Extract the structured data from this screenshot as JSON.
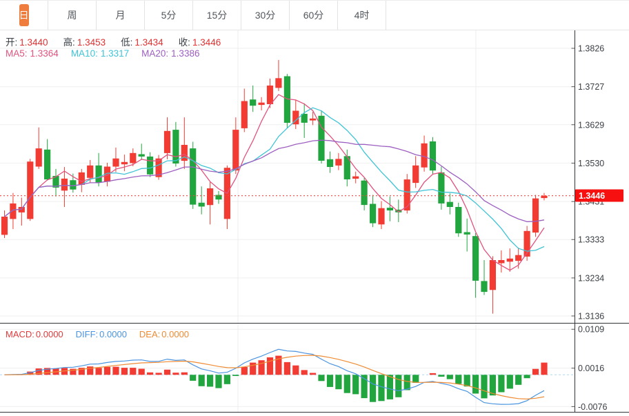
{
  "toolbar": {
    "tabs": [
      {
        "label": "日",
        "active": true
      },
      {
        "label": "周",
        "active": false
      },
      {
        "label": "月",
        "active": false
      },
      {
        "label": "5分",
        "active": false
      },
      {
        "label": "15分",
        "active": false
      },
      {
        "label": "30分",
        "active": false
      },
      {
        "label": "60分",
        "active": false
      },
      {
        "label": "4时",
        "active": false
      }
    ]
  },
  "legend": {
    "ohlc": [
      {
        "label": "开:",
        "value": "1.3440"
      },
      {
        "label": "高:",
        "value": "1.3453"
      },
      {
        "label": "低:",
        "value": "1.3434"
      },
      {
        "label": "收:",
        "value": "1.3446"
      }
    ],
    "ohlc_value_color": "#e03131",
    "ma": [
      {
        "label": "MA5:",
        "value": "1.3364",
        "color": "#e2527e"
      },
      {
        "label": "MA10:",
        "value": "1.3317",
        "color": "#3fc3d6"
      },
      {
        "label": "MA20:",
        "value": "1.3386",
        "color": "#9c5fc0"
      }
    ]
  },
  "macd_legend": [
    {
      "label": "MACD:",
      "value": "0.0000",
      "color": "#e03a3a"
    },
    {
      "label": "DIFF:",
      "value": "0.0000",
      "color": "#4a94e0"
    },
    {
      "label": "DEA:",
      "value": "0.0000",
      "color": "#ef8b33"
    }
  ],
  "price_tag": {
    "value": "1.3446"
  },
  "colors": {
    "accent": "#ef7d3d",
    "up": "#f23b32",
    "down": "#21a53e",
    "ma5": "#e2527e",
    "ma10": "#3fc3d6",
    "ma20": "#9c5fc0",
    "diff": "#4a94e0",
    "dea": "#ef8b33",
    "tag": "#f71010",
    "price_line": "#f5433f",
    "macd_zero_line": "#aed9f0",
    "grid": "#efefef",
    "axis": "#2f3237"
  },
  "chart_data": {
    "type": "candlestick+macd",
    "y_axis_ticks": [
      "1.3826",
      "1.3727",
      "1.3629",
      "1.3530",
      "1.3431",
      "1.3333",
      "1.3234",
      "1.3136"
    ],
    "macd_axis_ticks": [
      "0.0109",
      "0.0016",
      "-0.0076"
    ],
    "current_price": 1.3446,
    "ylim": [
      1.312,
      1.3876
    ],
    "macd_ylim": [
      -0.0088,
      0.0122
    ],
    "ma_periods": [
      5,
      10,
      20
    ],
    "macd_params": [
      12,
      26,
      9
    ],
    "grid": true,
    "candles": [
      [
        1.3345,
        1.3408,
        1.3337,
        1.3392
      ],
      [
        1.3386,
        1.3453,
        1.336,
        1.3426
      ],
      [
        1.3403,
        1.3441,
        1.3369,
        1.3417
      ],
      [
        1.3386,
        1.3541,
        1.3381,
        1.3534
      ],
      [
        1.3521,
        1.3622,
        1.3515,
        1.3568
      ],
      [
        1.3565,
        1.3592,
        1.3485,
        1.3488
      ],
      [
        1.3497,
        1.3515,
        1.3444,
        1.3467
      ],
      [
        1.3459,
        1.352,
        1.3417,
        1.349
      ],
      [
        1.3486,
        1.3503,
        1.3454,
        1.3462
      ],
      [
        1.3474,
        1.3515,
        1.3455,
        1.3506
      ],
      [
        1.3492,
        1.3538,
        1.348,
        1.3524
      ],
      [
        1.3524,
        1.3556,
        1.347,
        1.348
      ],
      [
        1.3482,
        1.3531,
        1.347,
        1.3521
      ],
      [
        1.3521,
        1.357,
        1.3507,
        1.3542
      ],
      [
        1.3527,
        1.3552,
        1.3509,
        1.3533
      ],
      [
        1.353,
        1.3568,
        1.3522,
        1.3556
      ],
      [
        1.3553,
        1.358,
        1.3538,
        1.3547
      ],
      [
        1.3547,
        1.3558,
        1.3494,
        1.3501
      ],
      [
        1.3494,
        1.3551,
        1.3487,
        1.3542
      ],
      [
        1.3556,
        1.3648,
        1.354,
        1.3613
      ],
      [
        1.3616,
        1.3636,
        1.3521,
        1.3529
      ],
      [
        1.3536,
        1.3648,
        1.3515,
        1.3577
      ],
      [
        1.3568,
        1.3585,
        1.3412,
        1.3423
      ],
      [
        1.3428,
        1.347,
        1.3398,
        1.3418
      ],
      [
        1.3422,
        1.3481,
        1.3372,
        1.3465
      ],
      [
        1.3448,
        1.3458,
        1.3425,
        1.3436
      ],
      [
        1.3386,
        1.3524,
        1.336,
        1.3518
      ],
      [
        1.3511,
        1.3648,
        1.3502,
        1.3616
      ],
      [
        1.362,
        1.3722,
        1.361,
        1.369
      ],
      [
        1.3694,
        1.373,
        1.3662,
        1.3678
      ],
      [
        1.368,
        1.37,
        1.3666,
        1.3686
      ],
      [
        1.3682,
        1.3748,
        1.3672,
        1.373
      ],
      [
        1.3724,
        1.3796,
        1.3716,
        1.3749
      ],
      [
        1.3754,
        1.376,
        1.362,
        1.3634
      ],
      [
        1.363,
        1.3693,
        1.3618,
        1.3665
      ],
      [
        1.3657,
        1.3684,
        1.3595,
        1.3634
      ],
      [
        1.364,
        1.3662,
        1.3628,
        1.3645
      ],
      [
        1.3652,
        1.3666,
        1.3529,
        1.3536
      ],
      [
        1.354,
        1.356,
        1.3505,
        1.352
      ],
      [
        1.3524,
        1.3556,
        1.3512,
        1.3541
      ],
      [
        1.3548,
        1.3565,
        1.347,
        1.3488
      ],
      [
        1.349,
        1.3508,
        1.3478,
        1.3496
      ],
      [
        1.3485,
        1.3492,
        1.3408,
        1.3422
      ],
      [
        1.3425,
        1.3448,
        1.3365,
        1.3375
      ],
      [
        1.3372,
        1.3432,
        1.336,
        1.3414
      ],
      [
        1.3415,
        1.3444,
        1.338,
        1.3408
      ],
      [
        1.341,
        1.3436,
        1.3378,
        1.3403
      ],
      [
        1.3408,
        1.3502,
        1.34,
        1.3488
      ],
      [
        1.3479,
        1.3548,
        1.3466,
        1.3524
      ],
      [
        1.3519,
        1.3601,
        1.3508,
        1.3581
      ],
      [
        1.3586,
        1.3597,
        1.3502,
        1.3511
      ],
      [
        1.3506,
        1.3521,
        1.341,
        1.3426
      ],
      [
        1.343,
        1.3452,
        1.3398,
        1.3417
      ],
      [
        1.3417,
        1.3428,
        1.334,
        1.3349
      ],
      [
        1.3352,
        1.3387,
        1.3302,
        1.3346
      ],
      [
        1.3342,
        1.335,
        1.3183,
        1.3227
      ],
      [
        1.3226,
        1.328,
        1.319,
        1.3198
      ],
      [
        1.3203,
        1.329,
        1.3142,
        1.328
      ],
      [
        1.3272,
        1.3305,
        1.3248,
        1.328
      ],
      [
        1.3276,
        1.331,
        1.325,
        1.3284
      ],
      [
        1.3278,
        1.3312,
        1.3258,
        1.3293
      ],
      [
        1.3289,
        1.3368,
        1.3278,
        1.3355
      ],
      [
        1.3351,
        1.3448,
        1.334,
        1.3439
      ],
      [
        1.344,
        1.3453,
        1.3434,
        1.3446
      ]
    ]
  }
}
